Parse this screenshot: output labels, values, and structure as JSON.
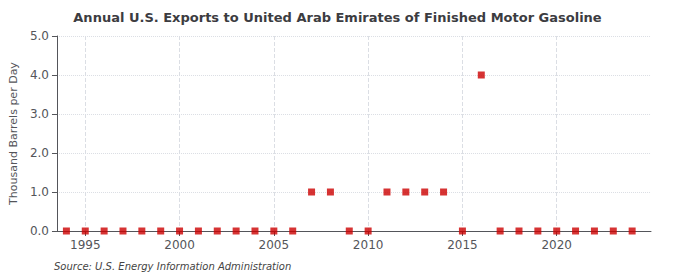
{
  "chart_data": {
    "type": "scatter",
    "title": "Annual U.S. Exports to United Arab Emirates of Finished Motor Gasoline",
    "ylabel": "Thousand Barrels per Day",
    "annotations": [
      "Source: U.S. Energy Information Administration"
    ],
    "x": [
      1994,
      1995,
      1996,
      1997,
      1998,
      1999,
      2000,
      2001,
      2002,
      2003,
      2004,
      2005,
      2006,
      2007,
      2008,
      2009,
      2010,
      2011,
      2012,
      2013,
      2014,
      2015,
      2016,
      2017,
      2018,
      2019,
      2020,
      2021,
      2022,
      2023,
      2024
    ],
    "values": [
      0.0,
      0.0,
      0.0,
      0.0,
      0.0,
      0.0,
      0.0,
      0.0,
      0.0,
      0.0,
      0.0,
      0.0,
      0.0,
      1.0,
      1.0,
      0.0,
      0.0,
      1.0,
      1.0,
      1.0,
      1.0,
      0.0,
      4.0,
      0.0,
      0.0,
      0.0,
      0.0,
      0.0,
      0.0,
      0.0,
      0.0
    ],
    "color": "#CC0000",
    "marker": "square",
    "xlim": [
      1993.5,
      2025
    ],
    "xticks": [
      1995,
      2000,
      2005,
      2010,
      2015,
      2020
    ],
    "ylim": [
      0.0,
      5.0
    ],
    "yticks": [
      {
        "value": 0.0,
        "label": "0.0"
      },
      {
        "value": 1.0,
        "label": "1.0"
      },
      {
        "value": 2.0,
        "label": "2.0"
      },
      {
        "value": 3.0,
        "label": "3.0"
      },
      {
        "value": 4.0,
        "label": "4.0"
      },
      {
        "value": 5.0,
        "label": "5.0"
      }
    ],
    "grid": true
  }
}
